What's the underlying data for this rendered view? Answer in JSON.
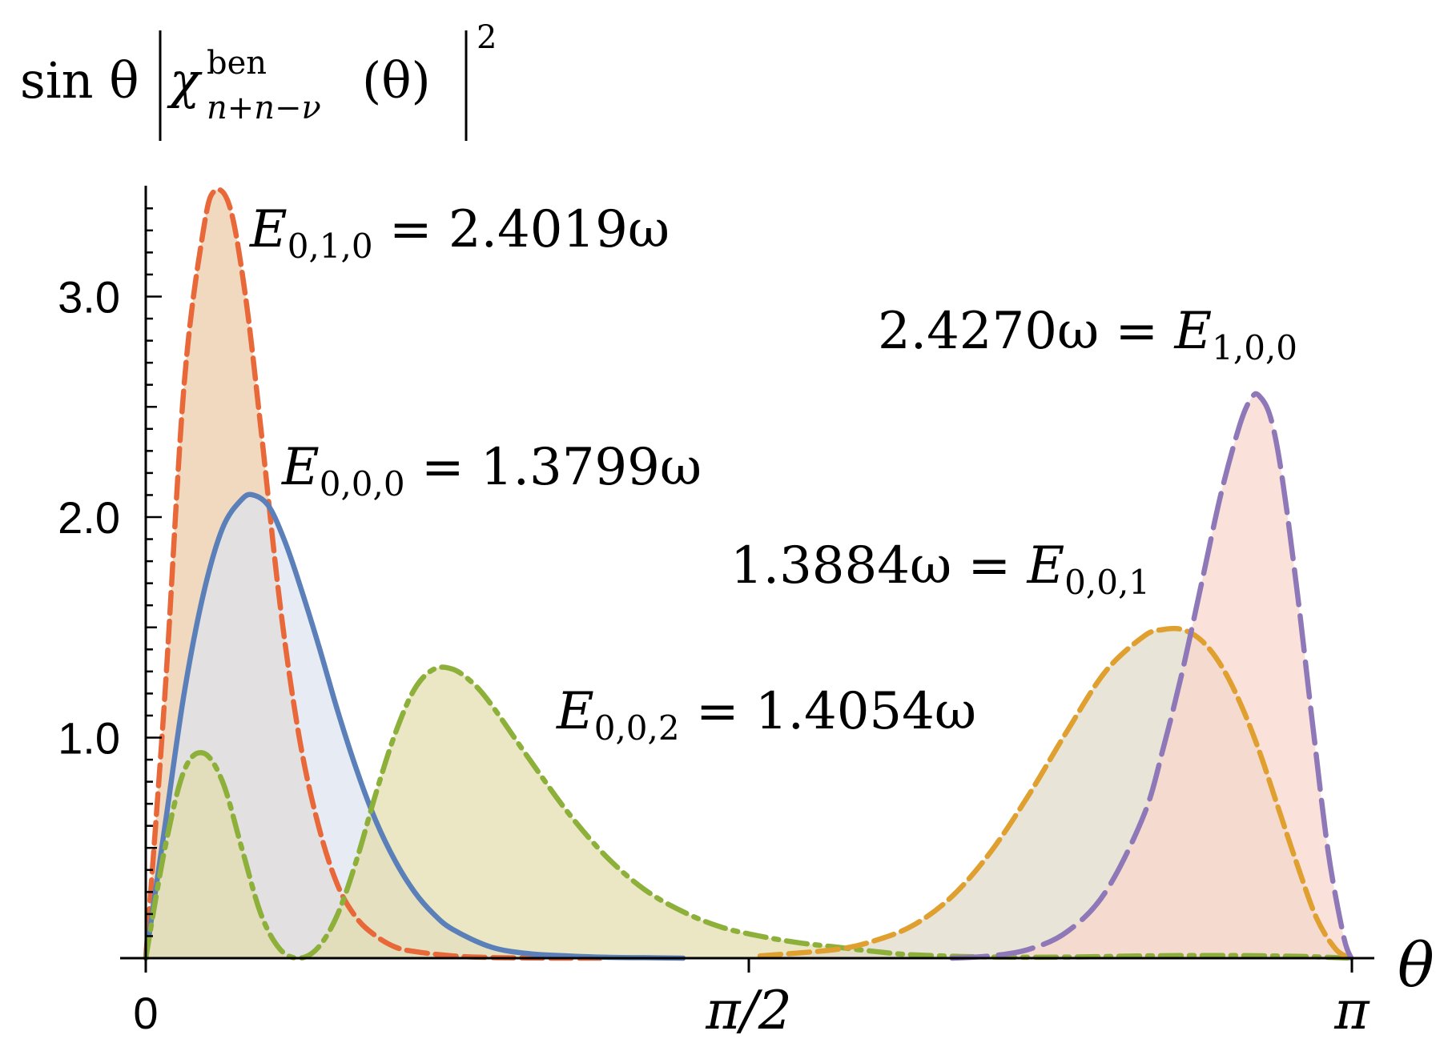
{
  "chart_data": {
    "type": "area",
    "title": "",
    "ylabel": {
      "prefix": "sin θ",
      "symbol": "χ",
      "superscript": "ben",
      "subscript": "n+n−ν",
      "argument": "(θ)",
      "power": "2"
    },
    "xlabel": "θ",
    "xlim": [
      0,
      3.1416
    ],
    "ylim": [
      0,
      3.5
    ],
    "x_ticks": [
      {
        "value": 0,
        "label": "0"
      },
      {
        "value": 1.5708,
        "label": "π/2"
      },
      {
        "value": 3.1416,
        "label": "π"
      }
    ],
    "y_ticks": [
      {
        "value": 1.0,
        "label": "1.0"
      },
      {
        "value": 2.0,
        "label": "2.0"
      },
      {
        "value": 3.0,
        "label": "3.0"
      }
    ],
    "grid": false,
    "legend": "none",
    "series": [
      {
        "name": "E_{0,1,0} = 2.4019ω",
        "label": {
          "lhs": "E",
          "sub": "0,1,0",
          "rhs": "= 2.4019ω",
          "order": "lhs-first"
        },
        "color": "#e8683a",
        "fill": "#e9c9a4",
        "dash": "dashed",
        "x": [
          0,
          0.05,
          0.1,
          0.15,
          0.18,
          0.22,
          0.26,
          0.3,
          0.35,
          0.4,
          0.45,
          0.5,
          0.55,
          0.6,
          0.65,
          0.7,
          0.8,
          0.9,
          1.0,
          1.1,
          1.2
        ],
        "y": [
          0,
          1.2,
          2.6,
          3.3,
          3.48,
          3.4,
          3.0,
          2.4,
          1.6,
          1.0,
          0.6,
          0.33,
          0.18,
          0.1,
          0.05,
          0.03,
          0.01,
          0.003,
          0.001,
          0,
          0
        ]
      },
      {
        "name": "E_{0,0,0} = 1.3799ω",
        "label": {
          "lhs": "E",
          "sub": "0,0,0",
          "rhs": "= 1.3799ω",
          "order": "lhs-first"
        },
        "color": "#5b80b9",
        "fill": "#dbe3ef",
        "dash": "solid",
        "x": [
          0,
          0.05,
          0.1,
          0.15,
          0.2,
          0.25,
          0.28,
          0.32,
          0.36,
          0.4,
          0.45,
          0.5,
          0.55,
          0.6,
          0.65,
          0.7,
          0.75,
          0.8,
          0.9,
          1.0,
          1.1,
          1.2,
          1.3,
          1.4
        ],
        "y": [
          0,
          0.6,
          1.2,
          1.65,
          1.95,
          2.08,
          2.1,
          2.05,
          1.9,
          1.7,
          1.42,
          1.12,
          0.85,
          0.62,
          0.44,
          0.3,
          0.2,
          0.13,
          0.05,
          0.02,
          0.01,
          0.004,
          0.002,
          0
        ]
      },
      {
        "name": "E_{0,0,2} = 1.4054ω",
        "label": {
          "lhs": "E",
          "sub": "0,0,2",
          "rhs": "= 1.4054ω",
          "order": "lhs-first"
        },
        "color": "#8db03a",
        "fill": "#e2dbaa",
        "dash": "dashdot",
        "x": [
          0,
          0.05,
          0.1,
          0.15,
          0.2,
          0.25,
          0.3,
          0.35,
          0.4,
          0.45,
          0.5,
          0.55,
          0.6,
          0.65,
          0.7,
          0.75,
          0.8,
          0.85,
          0.9,
          1.0,
          1.1,
          1.2,
          1.3,
          1.4,
          1.5,
          1.6,
          1.7,
          1.8,
          1.9,
          2.0,
          2.2,
          2.4,
          2.6,
          2.8,
          3.0,
          3.14
        ],
        "y": [
          0,
          0.5,
          0.85,
          0.93,
          0.8,
          0.5,
          0.2,
          0.04,
          0.0,
          0.05,
          0.2,
          0.45,
          0.75,
          1.02,
          1.22,
          1.31,
          1.31,
          1.25,
          1.15,
          0.9,
          0.66,
          0.46,
          0.31,
          0.21,
          0.14,
          0.1,
          0.07,
          0.05,
          0.03,
          0.015,
          0.005,
          0.005,
          0.01,
          0.012,
          0.008,
          0
        ]
      },
      {
        "name": "1.3884ω = E_{0,0,1}",
        "label": {
          "lhs": "1.3884ω =",
          "sub": "0,0,1",
          "rhs": "E",
          "order": "value-first"
        },
        "color": "#e0a030",
        "fill": "#e0d8c8",
        "dash": "dashed",
        "x": [
          1.6,
          1.8,
          1.9,
          2.0,
          2.1,
          2.2,
          2.3,
          2.4,
          2.5,
          2.6,
          2.65,
          2.7,
          2.75,
          2.8,
          2.85,
          2.9,
          2.95,
          3.0,
          3.05,
          3.1,
          3.14
        ],
        "y": [
          0.01,
          0.04,
          0.08,
          0.15,
          0.28,
          0.48,
          0.74,
          1.03,
          1.3,
          1.46,
          1.49,
          1.49,
          1.44,
          1.33,
          1.16,
          0.94,
          0.68,
          0.42,
          0.18,
          0.04,
          0
        ]
      },
      {
        "name": "2.4270ω = E_{1,0,0}",
        "label": {
          "lhs": "2.4270ω =",
          "sub": "1,0,0",
          "rhs": "E",
          "order": "value-first"
        },
        "color": "#8e78b8",
        "fill": "#f8d6cc",
        "dash": "longdash",
        "x": [
          2.1,
          2.2,
          2.3,
          2.4,
          2.5,
          2.6,
          2.65,
          2.7,
          2.75,
          2.8,
          2.85,
          2.88,
          2.9,
          2.93,
          2.96,
          3.0,
          3.04,
          3.08,
          3.12,
          3.14
        ],
        "y": [
          0,
          0.01,
          0.04,
          0.12,
          0.3,
          0.65,
          0.95,
          1.3,
          1.7,
          2.1,
          2.42,
          2.54,
          2.55,
          2.45,
          2.18,
          1.65,
          1.05,
          0.48,
          0.1,
          0
        ]
      }
    ]
  },
  "annotations": {
    "colors": {
      "axis": "#000000"
    }
  }
}
